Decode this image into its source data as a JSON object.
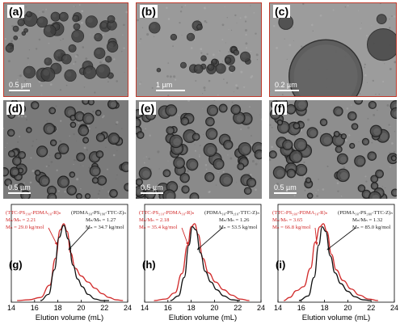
{
  "tem_panels": [
    {
      "label": "(a)",
      "scale_bar": "0.5 µm"
    },
    {
      "label": "(b)",
      "scale_bar": "1 µm"
    },
    {
      "label": "(c)",
      "scale_bar": "0.2 µm"
    },
    {
      "label": "(d)",
      "scale_bar": "0.5 µm"
    },
    {
      "label": "(e)",
      "scale_bar": "0.5 µm"
    },
    {
      "label": "(f)",
      "scale_bar": "0.5 µm"
    }
  ],
  "gpc_panels": [
    {
      "label": "(g)",
      "red_title": "(TTC-PS₁₉₀-PDMA₁₈-R)ₙ",
      "red_pdi": "Mₙ/Mₙ = 2.21",
      "red_mn": "Mₙ = 29.0 kg/mol",
      "black_title": "(PDMA₁₈-PS₁₉₀-TTC-Z)ₙ",
      "black_pdi": "Mₙ/Mₙ = 1.27",
      "black_mn": "Mₙ = 34.7 kg/mol"
    },
    {
      "label": "(h)",
      "red_title": "(TTC-PS₂₁₀-PDMA₁₈-R)ₙ",
      "red_pdi": "Mₙ/Mₙ = 2.18",
      "red_mn": "Mₙ = 35.4 kg/mol",
      "black_title": "(PDMA₁₈-PS₂₁₀-TTC-Z)ₙ",
      "black_pdi": "Mₙ/Mₙ = 1.26",
      "black_mn": "Mₙ = 53.5 kg/mol"
    },
    {
      "label": "(i)",
      "red_title": "(TTC-PS₂₈₀-PDMA₁₈-R)ₙ",
      "red_pdi": "Mₙ/Mₙ = 3.65",
      "red_mn": "Mₙ = 66.8 kg/mol",
      "black_title": "(PDMA₁₈-PS₂₈₀-TTC-Z)ₙ",
      "black_pdi": "Mₙ/Mₙ = 1.32",
      "black_mn": "Mₙ = 85.0 kg/mol"
    }
  ],
  "chart_data": [
    {
      "type": "line",
      "xlabel": "Elution volume (mL)",
      "xlim": [
        14,
        24
      ],
      "xticks": [
        "14",
        "16",
        "18",
        "20",
        "22",
        "24"
      ],
      "series": [
        {
          "color": "#d12a2a",
          "x": [
            14.5,
            15.5,
            16.5,
            17.3,
            17.8,
            18.2,
            18.5,
            18.8,
            19.1,
            19.5,
            20.0,
            20.6,
            21.2,
            21.8,
            22.4,
            23.0,
            23.6
          ],
          "y": [
            0.0,
            0.01,
            0.04,
            0.2,
            0.55,
            0.92,
            1.0,
            0.9,
            0.62,
            0.42,
            0.32,
            0.24,
            0.16,
            0.09,
            0.04,
            0.01,
            0.0
          ]
        },
        {
          "color": "#111111",
          "x": [
            16.5,
            17.2,
            17.7,
            18.1,
            18.5,
            18.9,
            19.3,
            19.7,
            20.1,
            20.6,
            21.2,
            21.8,
            22.4
          ],
          "y": [
            0.0,
            0.08,
            0.4,
            0.82,
            0.98,
            0.8,
            0.46,
            0.28,
            0.18,
            0.08,
            0.02,
            0.0,
            0.0
          ]
        }
      ]
    },
    {
      "type": "line",
      "xlabel": "Elution volume (mL)",
      "xlim": [
        14,
        24
      ],
      "xticks": [
        "14",
        "16",
        "18",
        "20",
        "22",
        "24"
      ],
      "series": [
        {
          "color": "#d12a2a",
          "x": [
            14.8,
            15.8,
            16.6,
            17.2,
            17.7,
            18.0,
            18.3,
            18.6,
            19.0,
            19.5,
            20.1,
            20.8,
            21.5,
            22.2,
            23.0
          ],
          "y": [
            0.0,
            0.02,
            0.1,
            0.35,
            0.72,
            0.96,
            1.0,
            0.86,
            0.55,
            0.36,
            0.24,
            0.14,
            0.07,
            0.02,
            0.0
          ]
        },
        {
          "color": "#111111",
          "x": [
            16.2,
            16.9,
            17.4,
            17.8,
            18.1,
            18.4,
            18.8,
            19.2,
            19.7,
            20.2,
            20.8,
            21.5,
            22.2
          ],
          "y": [
            0.0,
            0.06,
            0.3,
            0.72,
            0.96,
            0.92,
            0.62,
            0.38,
            0.24,
            0.14,
            0.06,
            0.01,
            0.0
          ]
        }
      ]
    },
    {
      "type": "line",
      "xlabel": "Elution volume (mL)",
      "xlim": [
        14,
        24
      ],
      "xticks": [
        "14",
        "16",
        "18",
        "20",
        "22",
        "24"
      ],
      "series": [
        {
          "color": "#d12a2a",
          "x": [
            14.5,
            15.0,
            15.6,
            16.2,
            16.8,
            17.2,
            17.6,
            17.9,
            18.2,
            18.6,
            19.0,
            19.6,
            20.3,
            21.0,
            21.8,
            22.6
          ],
          "y": [
            0.0,
            0.04,
            0.13,
            0.18,
            0.42,
            0.76,
            0.96,
            1.0,
            0.9,
            0.6,
            0.4,
            0.26,
            0.15,
            0.07,
            0.02,
            0.0
          ]
        },
        {
          "color": "#111111",
          "x": [
            15.8,
            16.6,
            17.1,
            17.5,
            17.8,
            18.1,
            18.5,
            18.9,
            19.4,
            20.0,
            20.6,
            21.3,
            22.0
          ],
          "y": [
            0.0,
            0.06,
            0.3,
            0.72,
            0.96,
            0.9,
            0.58,
            0.36,
            0.22,
            0.12,
            0.05,
            0.01,
            0.0
          ]
        }
      ]
    }
  ]
}
